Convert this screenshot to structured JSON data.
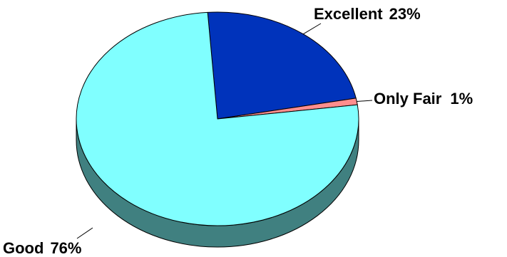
{
  "chart_data": {
    "type": "pie",
    "title": "",
    "slices": [
      {
        "name": "Excellent",
        "value": 23,
        "value_label": "23%",
        "color": "#0033BB",
        "side_color": "#001A5E"
      },
      {
        "name": "Only Fair",
        "value": 1,
        "value_label": "1%",
        "color": "#FF8E8E",
        "side_color": "#8A4040"
      },
      {
        "name": "Good",
        "value": 76,
        "value_label": "76%",
        "color": "#80FFFF",
        "side_color": "#408080"
      }
    ],
    "style": "3d-tilted",
    "legend": "none"
  }
}
